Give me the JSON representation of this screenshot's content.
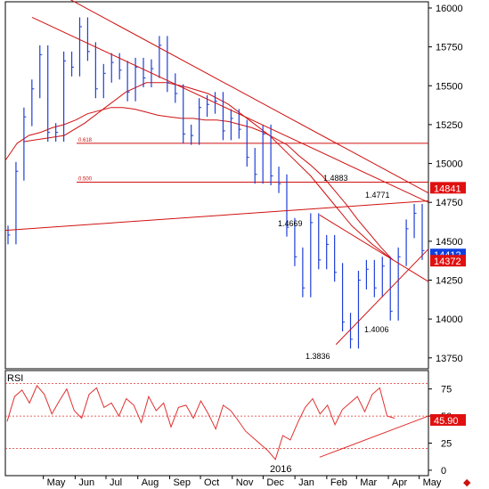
{
  "chart_data": [
    {
      "type": "candlestick",
      "panel": "price",
      "x_ticks": [
        "May",
        "Jun",
        "Jul",
        "Aug",
        "Sep",
        "Oct",
        "Nov",
        "Dec",
        "Jan",
        "Feb",
        "Mar",
        "Apr",
        "May"
      ],
      "year_label": "2016",
      "y_ticks": [
        13750,
        14000,
        14250,
        14500,
        14750,
        15000,
        15250,
        15500,
        15750,
        16000
      ],
      "ylim": [
        13680,
        16040
      ],
      "series": [
        {
          "kind": "bars",
          "color": "#1f3fd8",
          "values": [
            14540,
            14950,
            15300,
            15480,
            15700,
            15200,
            15200,
            15660,
            15620,
            15880,
            15720,
            15480,
            15580,
            15650,
            15600,
            15460,
            15620,
            15550,
            15610,
            15760,
            15520,
            15450,
            15190,
            15180,
            15360,
            15380,
            15400,
            15210,
            15290,
            15220,
            15040,
            14930,
            15190,
            14920,
            14870,
            14590,
            14400,
            14200,
            14620,
            14380,
            14480,
            14300,
            13980,
            13870,
            14250,
            14320,
            14200,
            14340,
            14050,
            14400,
            14580,
            14680,
            14440
          ]
        },
        {
          "kind": "moving_average",
          "color": "#d01010",
          "values": [
            15020,
            15130,
            15180,
            15200,
            15230,
            15250,
            15280,
            15320,
            15340,
            15360,
            15360,
            15350,
            15330,
            15310,
            15300,
            15290,
            15290,
            15280,
            15280,
            15270,
            15250,
            15230,
            15200,
            15160,
            15120,
            15050,
            14990,
            14920,
            14830,
            14740,
            14640,
            14550,
            14460,
            14380
          ]
        },
        {
          "kind": "moving_average",
          "color": "#d01010",
          "values": [
            15140,
            15160,
            15180,
            15260,
            15360,
            15460,
            15520,
            15520,
            15490,
            15450,
            15380,
            15280,
            15180,
            15050,
            14920,
            14760,
            14600,
            14480,
            14380
          ]
        }
      ],
      "horizontal_levels": [
        {
          "label": "0.618",
          "value": 15130,
          "color": "#d01010"
        },
        {
          "label": "0.500",
          "value": 14880,
          "color": "#d01010"
        }
      ],
      "trendlines": [
        {
          "from": [
            "2015-04-20",
            15940
          ],
          "to": [
            "2016-05-10",
            14750
          ],
          "color": "#d01010"
        },
        {
          "from": [
            "2015-03-25",
            14570
          ],
          "to": [
            "2016-05-10",
            14760
          ],
          "color": "#d01010"
        },
        {
          "from": [
            "2015-05-20",
            16080
          ],
          "to": [
            "2016-05-10",
            14810
          ],
          "color": "#d01010"
        },
        {
          "from": [
            "2016-01-25",
            14669
          ],
          "to": [
            "2016-05-10",
            14240
          ],
          "color": "#d01010"
        },
        {
          "from": [
            "2016-02-10",
            13836
          ],
          "to": [
            "2016-05-10",
            14450
          ],
          "color": "#d01010"
        }
      ],
      "annotations": [
        "1.4883",
        "1.4771",
        "1.4669",
        "1.4006",
        "1.3836"
      ],
      "price_tags": [
        {
          "value": "14841",
          "y": 14841,
          "color": "#e01010"
        },
        {
          "value": "14412",
          "y": 14412,
          "color": "#1040e0"
        },
        {
          "value": "14372",
          "y": 14372,
          "color": "#e01010"
        }
      ]
    },
    {
      "type": "line",
      "panel": "indicator",
      "title": "RSI",
      "y_ticks": [
        0,
        25,
        50,
        75
      ],
      "ylim": [
        -5,
        92
      ],
      "levels": [
        80,
        50,
        20
      ],
      "series": [
        {
          "name": "RSI",
          "color": "#e03030",
          "values": [
            45,
            68,
            74,
            62,
            78,
            70,
            52,
            64,
            75,
            55,
            48,
            70,
            76,
            58,
            62,
            50,
            66,
            60,
            44,
            68,
            55,
            62,
            40,
            58,
            60,
            48,
            64,
            52,
            38,
            60,
            55,
            46,
            36,
            30,
            24,
            18,
            10,
            32,
            28,
            44,
            58,
            66,
            52,
            60,
            42,
            56,
            62,
            68,
            54,
            70,
            76,
            50,
            48
          ]
        }
      ],
      "trendline": {
        "from": [
          "2016-01-25",
          12
        ],
        "to": [
          "2016-05-10",
          50
        ],
        "color": "#e03030"
      },
      "price_tags": [
        {
          "value": "45.90",
          "y": 46,
          "color": "#e01010"
        }
      ]
    }
  ]
}
